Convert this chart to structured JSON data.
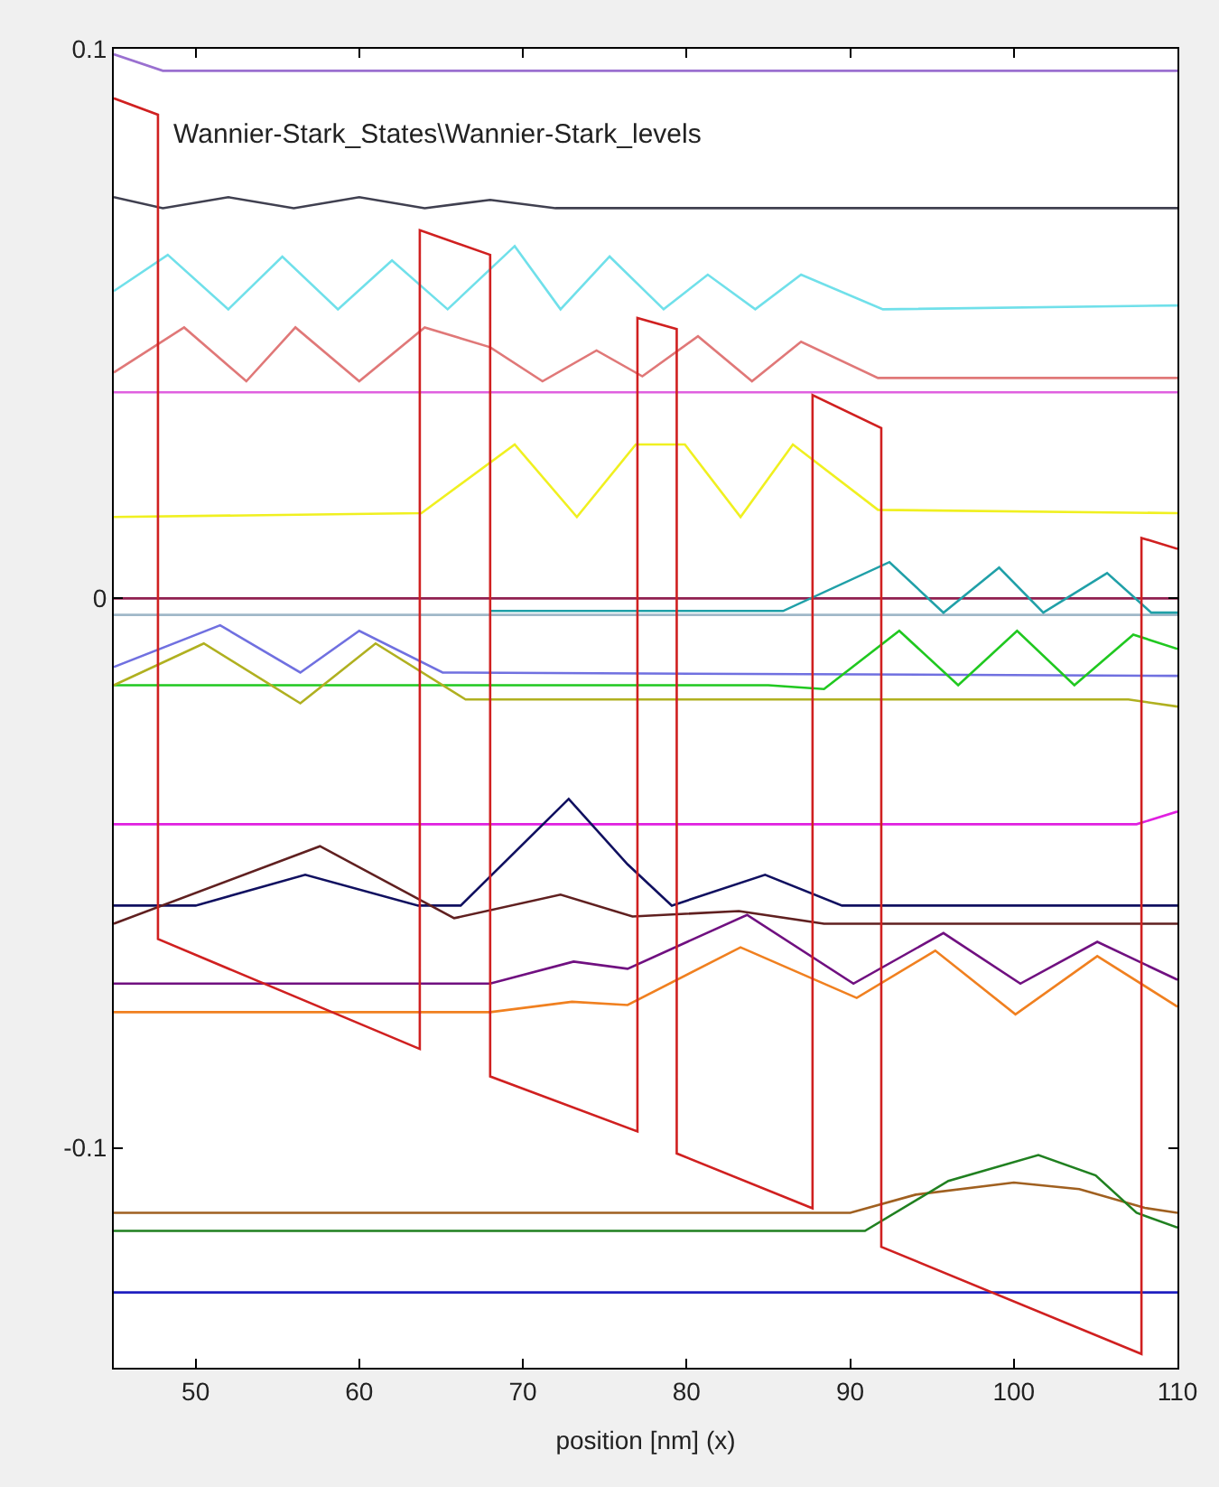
{
  "chart_data": {
    "type": "line",
    "xlabel": "position [nm] (x)",
    "annotations": [
      "Wannier-Stark_States\\Wannier-Stark_levels"
    ],
    "xlim": [
      45,
      110
    ],
    "ylim": [
      -0.14,
      0.1
    ],
    "xticks": [
      50,
      60,
      70,
      80,
      90,
      100,
      110
    ],
    "yticks": [
      -0.1,
      0,
      0.1
    ],
    "series": [
      {
        "color": "#9a70d0",
        "x": [
          45,
          48,
          110
        ],
        "values": [
          0.099,
          0.096,
          0.096
        ]
      },
      {
        "color": "#404050",
        "x": [
          45,
          48,
          52,
          56,
          60,
          64,
          68,
          72,
          110
        ],
        "values": [
          0.073,
          0.071,
          0.073,
          0.071,
          0.073,
          0.071,
          0.0725,
          0.071,
          0.071
        ]
      },
      {
        "color": "#70e0ea",
        "x": [
          45,
          48.3,
          52,
          55.3,
          58.7,
          62,
          65.4,
          69.5,
          72.3,
          75.3,
          78.6,
          81.3,
          84.2,
          87,
          92,
          110
        ],
        "values": [
          0.0559,
          0.0625,
          0.0526,
          0.0622,
          0.0526,
          0.0615,
          0.0526,
          0.0641,
          0.0526,
          0.0622,
          0.0526,
          0.0589,
          0.0526,
          0.0589,
          0.0526,
          0.0533
        ]
      },
      {
        "color": "#e07878",
        "x": [
          45,
          49.3,
          53.1,
          56.1,
          60,
          64,
          68,
          71.2,
          74.5,
          77.3,
          80.7,
          84,
          87,
          91.7,
          110
        ],
        "values": [
          0.0411,
          0.0493,
          0.0395,
          0.0493,
          0.0395,
          0.0493,
          0.0457,
          0.0395,
          0.0451,
          0.0404,
          0.0477,
          0.0395,
          0.0467,
          0.0401,
          0.0401
        ]
      },
      {
        "color": "#e060e0",
        "x": [
          45,
          110
        ],
        "values": [
          0.0375,
          0.0375
        ]
      },
      {
        "color": "#f0f020",
        "x": [
          45,
          63.8,
          69.5,
          73.3,
          76.9,
          79.9,
          83.3,
          86.5,
          91.7,
          110
        ],
        "values": [
          0.0148,
          0.0155,
          0.028,
          0.0148,
          0.028,
          0.028,
          0.0148,
          0.028,
          0.0161,
          0.0155
        ]
      },
      {
        "color": "#902050",
        "x": [
          45,
          110
        ],
        "values": [
          0,
          0
        ]
      },
      {
        "color": "#a0b8c8",
        "x": [
          45,
          110
        ],
        "values": [
          -0.003,
          -0.003
        ]
      },
      {
        "color": "#20a0a8",
        "x": [
          68,
          85.9,
          92.4,
          95.7,
          99.1,
          101.8,
          105.7,
          108.4,
          110
        ],
        "values": [
          -0.0023,
          -0.0023,
          0.0066,
          -0.0026,
          0.0056,
          -0.0026,
          0.0046,
          -0.0026,
          -0.0026
        ]
      },
      {
        "color": "#7070e0",
        "x": [
          45,
          51.5,
          56.4,
          60,
          65.1,
          110
        ],
        "values": [
          -0.0125,
          -0.0049,
          -0.0135,
          -0.0059,
          -0.0135,
          -0.0141
        ]
      },
      {
        "color": "#20c820",
        "x": [
          45,
          85,
          88.4,
          93,
          96.6,
          100.2,
          103.7,
          107.3,
          110
        ],
        "values": [
          -0.0158,
          -0.0158,
          -0.0165,
          -0.0059,
          -0.0158,
          -0.0059,
          -0.0158,
          -0.0066,
          -0.0092
        ]
      },
      {
        "color": "#b0b020",
        "x": [
          45,
          50.5,
          56.4,
          61,
          66.5,
          80,
          107,
          110
        ],
        "values": [
          -0.0158,
          -0.0082,
          -0.0191,
          -0.0082,
          -0.0184,
          -0.0184,
          -0.0184,
          -0.0197
        ]
      },
      {
        "color": "#e020e0",
        "x": [
          45,
          107.5,
          110
        ],
        "values": [
          -0.0411,
          -0.0411,
          -0.0388
        ]
      },
      {
        "color": "#101060",
        "x": [
          45,
          50,
          56.7,
          63.6,
          66.2,
          72.8,
          76.4,
          79.1,
          84.8,
          89.5,
          110
        ],
        "values": [
          -0.0559,
          -0.0559,
          -0.0503,
          -0.0559,
          -0.0559,
          -0.0365,
          -0.0484,
          -0.0559,
          -0.0503,
          -0.0559,
          -0.0559
        ]
      },
      {
        "color": "#602020",
        "x": [
          45,
          57.6,
          65.8,
          72.3,
          76.7,
          83.2,
          88.4,
          110
        ],
        "values": [
          -0.0592,
          -0.0451,
          -0.0582,
          -0.0539,
          -0.0579,
          -0.0569,
          -0.0592,
          -0.0592
        ]
      },
      {
        "color": "#701080",
        "x": [
          45,
          68,
          73.1,
          76.4,
          83.7,
          90.2,
          95.7,
          100.4,
          105.1,
          110
        ],
        "values": [
          -0.0701,
          -0.0701,
          -0.0661,
          -0.0674,
          -0.0576,
          -0.0701,
          -0.0609,
          -0.0701,
          -0.0625,
          -0.0694
        ]
      },
      {
        "color": "#f08020",
        "x": [
          45,
          68,
          73,
          76.4,
          83.3,
          90.4,
          95.2,
          100.1,
          105.1,
          110
        ],
        "values": [
          -0.0753,
          -0.0753,
          -0.0734,
          -0.074,
          -0.0635,
          -0.0727,
          -0.0641,
          -0.0757,
          -0.0651,
          -0.0743
        ]
      },
      {
        "color": "#a06020",
        "x": [
          45,
          90,
          94,
          100,
          104,
          108,
          110
        ],
        "values": [
          -0.1118,
          -0.1118,
          -0.1085,
          -0.1063,
          -0.1075,
          -0.1109,
          -0.1118
        ]
      },
      {
        "color": "#208020",
        "x": [
          45,
          90.9,
          96,
          101.5,
          105,
          107.5,
          110
        ],
        "values": [
          -0.1151,
          -0.1151,
          -0.106,
          -0.1013,
          -0.105,
          -0.1118,
          -0.1145
        ]
      },
      {
        "color": "#2020c0",
        "x": [
          45,
          110
        ],
        "values": [
          -0.1263,
          -0.1263
        ]
      },
      {
        "color": "#d02020",
        "x": [
          45,
          47.7,
          47.7,
          63.7,
          63.7,
          68,
          68,
          77,
          77,
          79.4,
          79.4,
          87.7,
          87.7,
          91.9,
          91.9,
          107.8,
          107.8,
          110
        ],
        "values": [
          0.091,
          0.088,
          -0.062,
          -0.082,
          0.067,
          0.0625,
          -0.087,
          -0.097,
          0.051,
          0.049,
          -0.101,
          -0.111,
          0.037,
          0.031,
          -0.118,
          -0.1375,
          0.011,
          0.009
        ]
      }
    ]
  }
}
